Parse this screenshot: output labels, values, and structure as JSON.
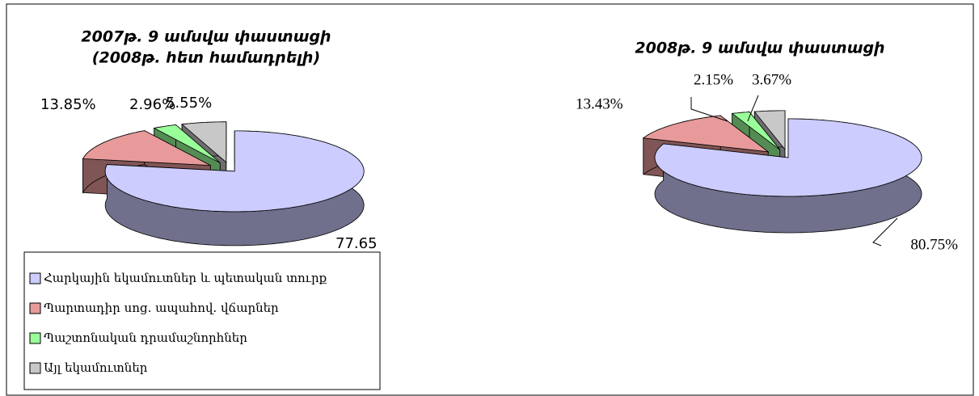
{
  "chart_data": [
    {
      "type": "pie3d",
      "title": "2007թ. 9 ամսվա փաստացի",
      "subtitle": "(2008թ. հետ համադրելի)",
      "categories": [
        "Հարկային եկամուտներ և պետական տուրք",
        "Պարտադիր սոց. ապահով. վճարներ",
        "Պաշտոնական դրամաշնորհներ",
        "Այլ եկամուտներ"
      ],
      "colors": [
        "#ccccff",
        "#e89a9a",
        "#99ff99",
        "#c8c8c8"
      ],
      "values": [
        77.65,
        13.85,
        2.96,
        5.55
      ],
      "value_labels": [
        "77.65",
        "13.85%",
        "2.96%",
        "5.55%"
      ],
      "legend": "bottom-left"
    },
    {
      "type": "pie3d",
      "title": "2008թ. 9 ամսվա փաստացի",
      "colors": [
        "#ccccff",
        "#e89a9a",
        "#99ff99",
        "#c8c8c8"
      ],
      "values": [
        80.75,
        13.43,
        2.15,
        3.67
      ],
      "value_labels": [
        "80.75%",
        "13.43%",
        "2.15%",
        "3.67%"
      ]
    }
  ]
}
